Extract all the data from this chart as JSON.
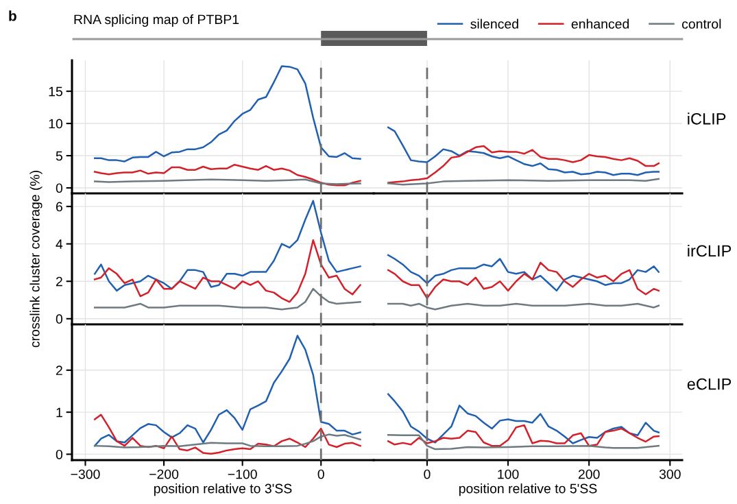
{
  "chart_data": [
    {
      "type": "line",
      "title": "RNA splicing map of PTBP1",
      "annotations": [
        "b"
      ],
      "legend": "top right",
      "grid": true,
      "tick_labels": "y",
      "x": [
        -288,
        -280,
        -270,
        -260,
        -250,
        -240,
        -230,
        -220,
        -210,
        -200,
        -190,
        -180,
        -170,
        -160,
        -150,
        -140,
        -130,
        -120,
        -110,
        -100,
        -90,
        -80,
        -70,
        -60,
        -50,
        -40,
        -30,
        -20,
        -10,
        0,
        10,
        20,
        30,
        40,
        50
      ],
      "xlim": [
        -317,
        67
      ],
      "xticks": [
        -300,
        -200,
        -100,
        0
      ],
      "ylim": [
        -0.85,
        19.8
      ],
      "yticks": [
        0,
        5,
        10,
        15
      ],
      "ref_lines": [
        {
          "axis": "x",
          "value": 0,
          "color": "#6e6e6e",
          "line_style": "dashed"
        }
      ],
      "series": [
        {
          "name": "silenced",
          "color": "#2060b0",
          "values": [
            4.6,
            4.6,
            4.3,
            4.3,
            4.1,
            4.7,
            4.8,
            4.8,
            5.6,
            4.9,
            5.5,
            5.6,
            6.0,
            6.0,
            6.3,
            7.1,
            8.3,
            8.9,
            10.4,
            11.5,
            12.1,
            13.7,
            14.1,
            16.4,
            18.9,
            18.8,
            18.4,
            16.2,
            10.9,
            6.3,
            4.9,
            4.8,
            5.4,
            4.6,
            4.5
          ]
        },
        {
          "name": "enhanced",
          "color": "#d42028",
          "values": [
            2.5,
            2.3,
            2.1,
            2.3,
            2.4,
            2.4,
            2.7,
            2.2,
            2.4,
            2.3,
            3.2,
            3.2,
            2.8,
            2.8,
            3.3,
            2.9,
            3.0,
            3.0,
            3.6,
            3.3,
            3.0,
            2.8,
            3.4,
            2.8,
            3.0,
            2.7,
            2.0,
            1.7,
            1.3,
            0.8,
            0.5,
            0.4,
            0.4,
            0.8,
            1.1
          ]
        },
        {
          "name": "control",
          "color": "#6d7b80",
          "x": [
            -288,
            -270,
            -240,
            -200,
            -140,
            -100,
            -70,
            -40,
            -20,
            0,
            20,
            50
          ],
          "values": [
            1.0,
            0.9,
            1.0,
            1.1,
            1.3,
            1.2,
            1.1,
            1.2,
            1.3,
            0.7,
            0.6,
            0.7
          ]
        }
      ]
    },
    {
      "type": "line",
      "title": "iCLIP",
      "grid": true,
      "tick_labels": false,
      "x": [
        -48,
        -40,
        -30,
        -20,
        -10,
        0,
        10,
        20,
        30,
        40,
        50,
        60,
        70,
        80,
        90,
        100,
        110,
        120,
        130,
        140,
        150,
        160,
        170,
        180,
        190,
        200,
        210,
        220,
        230,
        240,
        250,
        260,
        270,
        280,
        286
      ],
      "xlim": [
        -66,
        315
      ],
      "xticks": [
        0,
        100,
        200,
        300
      ],
      "ylim": [
        -0.85,
        19.8
      ],
      "yticks": [
        0,
        5,
        10,
        15
      ],
      "ref_lines": [
        {
          "axis": "x",
          "value": 0,
          "color": "#6e6e6e",
          "line_style": "dashed"
        }
      ],
      "series": [
        {
          "color": "#2060b0",
          "values": [
            9.4,
            8.8,
            6.6,
            4.3,
            4.1,
            4.0,
            4.9,
            6.0,
            5.7,
            5.0,
            5.7,
            5.6,
            5.4,
            4.9,
            4.6,
            4.9,
            4.3,
            3.7,
            3.4,
            3.8,
            2.9,
            2.8,
            2.4,
            2.5,
            2.1,
            2.2,
            2.5,
            2.4,
            2.0,
            2.2,
            2.2,
            2.0,
            2.4,
            2.5,
            2.5
          ]
        },
        {
          "color": "#d42028",
          "values": [
            0.8,
            0.9,
            1.0,
            1.2,
            1.3,
            1.5,
            2.4,
            3.4,
            4.7,
            4.9,
            5.6,
            6.3,
            6.5,
            5.5,
            5.7,
            5.6,
            5.6,
            5.3,
            5.9,
            4.8,
            4.5,
            4.5,
            4.3,
            4.0,
            4.3,
            5.1,
            4.9,
            4.8,
            4.5,
            4.3,
            4.6,
            4.2,
            3.4,
            3.4,
            3.8
          ]
        },
        {
          "color": "#6d7b80",
          "x": [
            -48,
            -30,
            0,
            20,
            50,
            100,
            150,
            200,
            250,
            270,
            286
          ],
          "values": [
            0.7,
            0.5,
            0.7,
            1.0,
            1.1,
            1.2,
            1.1,
            1.2,
            1.2,
            1.1,
            1.4
          ]
        }
      ]
    },
    {
      "type": "line",
      "ylabel": "crosslink cluster coverage (%)",
      "grid": true,
      "tick_labels": "y",
      "x": [
        -288,
        -280,
        -270,
        -260,
        -250,
        -240,
        -230,
        -220,
        -210,
        -200,
        -190,
        -180,
        -170,
        -160,
        -150,
        -140,
        -130,
        -120,
        -110,
        -100,
        -90,
        -80,
        -70,
        -60,
        -50,
        -40,
        -30,
        -20,
        -10,
        0,
        10,
        20,
        30,
        40,
        50
      ],
      "xlim": [
        -317,
        67
      ],
      "xticks": [
        -300,
        -200,
        -100,
        0
      ],
      "ylim": [
        -0.3,
        6.7
      ],
      "yticks": [
        0,
        2,
        4,
        6
      ],
      "ref_lines": [
        {
          "axis": "x",
          "value": 0,
          "color": "#6e6e6e",
          "line_style": "dashed"
        }
      ],
      "series": [
        {
          "color": "#2060b0",
          "values": [
            2.4,
            2.9,
            2.0,
            1.5,
            1.8,
            1.9,
            2.0,
            2.3,
            2.1,
            1.9,
            1.6,
            2.0,
            2.6,
            2.6,
            2.5,
            1.7,
            1.8,
            2.4,
            2.4,
            2.3,
            2.5,
            2.5,
            2.5,
            3.1,
            4.0,
            3.8,
            4.2,
            5.3,
            6.3,
            4.6,
            3.1,
            2.5,
            2.6,
            2.7,
            2.8
          ]
        },
        {
          "color": "#d42028",
          "values": [
            2.1,
            2.2,
            2.7,
            2.4,
            1.9,
            2.1,
            1.2,
            1.4,
            2.1,
            1.6,
            1.6,
            2.0,
            1.8,
            1.6,
            2.2,
            2.0,
            2.0,
            1.8,
            1.6,
            2.0,
            1.8,
            2.0,
            1.5,
            1.4,
            1.1,
            0.9,
            1.4,
            2.4,
            4.2,
            2.9,
            2.2,
            2.3,
            1.6,
            1.3,
            1.8
          ]
        },
        {
          "color": "#6d7b80",
          "x": [
            -288,
            -250,
            -230,
            -220,
            -200,
            -180,
            -130,
            -100,
            -70,
            -50,
            -30,
            -20,
            -10,
            0,
            10,
            20,
            50
          ],
          "values": [
            0.6,
            0.6,
            0.8,
            0.6,
            0.6,
            0.7,
            0.7,
            0.6,
            0.6,
            0.5,
            0.6,
            0.9,
            1.6,
            1.2,
            0.9,
            0.8,
            0.9
          ]
        }
      ]
    },
    {
      "type": "line",
      "title": "irCLIP",
      "grid": true,
      "tick_labels": false,
      "x": [
        -48,
        -40,
        -30,
        -20,
        -10,
        0,
        10,
        20,
        30,
        40,
        50,
        60,
        70,
        80,
        90,
        100,
        110,
        120,
        130,
        140,
        150,
        160,
        170,
        180,
        190,
        200,
        210,
        220,
        230,
        240,
        250,
        260,
        270,
        280,
        286
      ],
      "xlim": [
        -66,
        315
      ],
      "xticks": [
        0,
        100,
        200,
        300
      ],
      "ylim": [
        -0.3,
        6.7
      ],
      "yticks": [
        0,
        2,
        4,
        6
      ],
      "ref_lines": [
        {
          "axis": "x",
          "value": 0,
          "color": "#6e6e6e",
          "line_style": "dashed"
        }
      ],
      "series": [
        {
          "color": "#2060b0",
          "values": [
            3.4,
            3.2,
            2.9,
            2.5,
            2.3,
            1.9,
            2.3,
            2.4,
            2.6,
            2.7,
            2.7,
            2.7,
            2.9,
            2.8,
            3.2,
            2.5,
            2.4,
            2.5,
            2.1,
            2.3,
            1.9,
            1.5,
            2.1,
            2.3,
            2.2,
            2.1,
            2.0,
            1.8,
            1.9,
            1.9,
            2.1,
            2.6,
            2.5,
            2.8,
            2.5
          ]
        },
        {
          "color": "#d42028",
          "values": [
            2.6,
            2.4,
            2.0,
            1.8,
            1.8,
            1.1,
            1.7,
            2.1,
            2.0,
            2.0,
            1.8,
            2.2,
            1.6,
            1.7,
            2.0,
            1.5,
            2.0,
            2.4,
            2.1,
            3.0,
            2.6,
            2.5,
            2.0,
            1.7,
            2.1,
            2.4,
            2.2,
            2.3,
            2.0,
            2.4,
            2.6,
            1.6,
            1.3,
            1.6,
            1.5
          ]
        },
        {
          "color": "#6d7b80",
          "x": [
            -48,
            -30,
            -20,
            -10,
            0,
            10,
            30,
            50,
            70,
            90,
            110,
            130,
            150,
            170,
            200,
            220,
            240,
            260,
            280,
            286
          ],
          "values": [
            0.8,
            0.8,
            0.7,
            0.8,
            0.6,
            0.5,
            0.7,
            0.8,
            0.7,
            0.7,
            0.8,
            0.7,
            0.7,
            0.7,
            0.8,
            0.7,
            0.7,
            0.8,
            0.6,
            0.7
          ]
        }
      ]
    },
    {
      "type": "line",
      "xlabel": "position relative to 3'SS",
      "grid": true,
      "x": [
        -288,
        -280,
        -270,
        -260,
        -250,
        -240,
        -230,
        -220,
        -210,
        -200,
        -190,
        -180,
        -170,
        -160,
        -150,
        -140,
        -130,
        -120,
        -110,
        -100,
        -90,
        -80,
        -70,
        -60,
        -50,
        -40,
        -30,
        -20,
        -10,
        0,
        10,
        20,
        30,
        40,
        50
      ],
      "xlim": [
        -317,
        67
      ],
      "xticks": [
        {
          "value": -300,
          "label": "−300"
        },
        {
          "value": -200,
          "label": "−200"
        },
        {
          "value": -100,
          "label": "−100"
        },
        0
      ],
      "ylim": [
        -0.14,
        3.09
      ],
      "yticks": [
        0,
        1,
        2
      ],
      "ref_lines": [
        {
          "axis": "x",
          "value": 0,
          "color": "#6e6e6e",
          "line_style": "dashed"
        }
      ],
      "series": [
        {
          "color": "#2060b0",
          "values": [
            0.2,
            0.37,
            0.46,
            0.31,
            0.28,
            0.45,
            0.62,
            0.72,
            0.69,
            0.53,
            0.4,
            0.5,
            0.69,
            0.61,
            0.28,
            0.58,
            0.94,
            1.05,
            0.86,
            0.58,
            1.07,
            1.16,
            1.26,
            1.7,
            1.97,
            2.27,
            2.82,
            2.49,
            1.89,
            0.77,
            0.72,
            0.56,
            0.56,
            0.47,
            0.52
          ]
        },
        {
          "color": "#d42028",
          "values": [
            0.83,
            0.94,
            0.64,
            0.31,
            0.2,
            0.39,
            0.2,
            0.17,
            0.2,
            0.14,
            0.42,
            0.12,
            0.09,
            0.16,
            0.03,
            0.01,
            0.04,
            0.09,
            0.12,
            0.14,
            0.12,
            0.25,
            0.23,
            0.19,
            0.31,
            0.37,
            0.28,
            0.17,
            0.37,
            0.61,
            0.23,
            0.17,
            0.25,
            0.27,
            0.2
          ]
        },
        {
          "color": "#6d7b80",
          "x": [
            -288,
            -270,
            -250,
            -230,
            -200,
            -180,
            -160,
            -140,
            -120,
            -100,
            -90,
            -70,
            -50,
            -30,
            -20,
            -10,
            0,
            10,
            20,
            30,
            50
          ],
          "values": [
            0.2,
            0.19,
            0.16,
            0.17,
            0.2,
            0.19,
            0.23,
            0.27,
            0.26,
            0.26,
            0.2,
            0.19,
            0.19,
            0.2,
            0.25,
            0.31,
            0.42,
            0.47,
            0.44,
            0.46,
            0.35
          ]
        }
      ]
    },
    {
      "type": "line",
      "title": "eCLIP",
      "xlabel": "position relative to 5'SS",
      "grid": true,
      "tick_labels": "x",
      "x": [
        -48,
        -40,
        -30,
        -20,
        -10,
        0,
        10,
        20,
        30,
        40,
        50,
        60,
        70,
        80,
        90,
        100,
        110,
        120,
        130,
        140,
        150,
        160,
        170,
        180,
        190,
        200,
        210,
        220,
        230,
        240,
        250,
        260,
        270,
        280,
        286
      ],
      "xlim": [
        -66,
        315
      ],
      "xticks": [
        0,
        100,
        200,
        300
      ],
      "ylim": [
        -0.14,
        3.09
      ],
      "yticks": [
        0,
        1,
        2
      ],
      "ref_lines": [
        {
          "axis": "x",
          "value": 0,
          "color": "#6e6e6e",
          "line_style": "dashed"
        }
      ],
      "series": [
        {
          "color": "#2060b0",
          "values": [
            1.43,
            1.26,
            1.02,
            0.66,
            0.54,
            0.37,
            0.28,
            0.47,
            0.66,
            1.16,
            0.97,
            0.91,
            0.75,
            0.61,
            0.8,
            0.83,
            0.79,
            0.79,
            0.75,
            0.96,
            0.66,
            0.56,
            0.42,
            0.26,
            0.34,
            0.41,
            0.39,
            0.53,
            0.61,
            0.65,
            0.5,
            0.45,
            0.75,
            0.56,
            0.52
          ]
        },
        {
          "color": "#d42028",
          "values": [
            0.31,
            0.23,
            0.27,
            0.23,
            0.39,
            0.26,
            0.31,
            0.39,
            0.37,
            0.39,
            0.56,
            0.53,
            0.28,
            0.2,
            0.2,
            0.34,
            0.64,
            0.69,
            0.26,
            0.32,
            0.31,
            0.26,
            0.26,
            0.45,
            0.5,
            0.2,
            0.23,
            0.53,
            0.56,
            0.61,
            0.5,
            0.39,
            0.3,
            0.42,
            0.43
          ]
        },
        {
          "color": "#6d7b80",
          "x": [
            -48,
            -30,
            -10,
            0,
            10,
            30,
            50,
            70,
            100,
            130,
            160,
            200,
            220,
            230,
            260,
            286
          ],
          "values": [
            0.46,
            0.45,
            0.45,
            0.2,
            0.12,
            0.13,
            0.17,
            0.16,
            0.17,
            0.19,
            0.19,
            0.2,
            0.16,
            0.15,
            0.15,
            0.2
          ]
        }
      ]
    }
  ]
}
